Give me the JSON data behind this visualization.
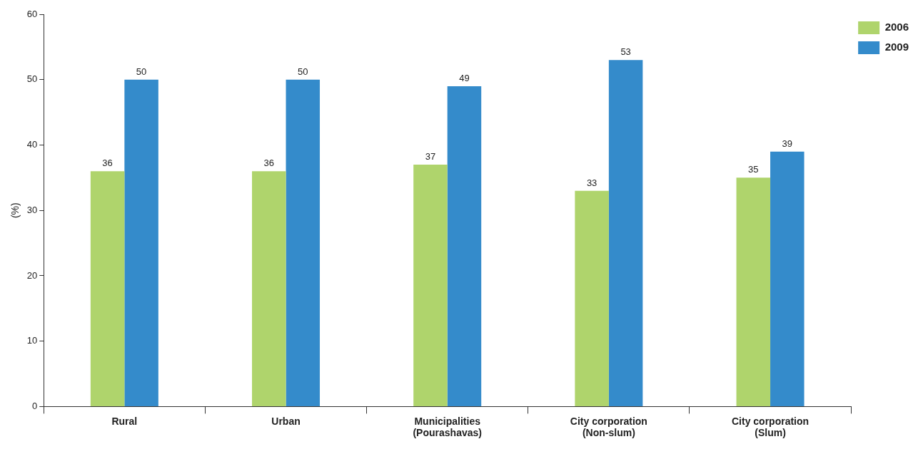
{
  "chart_data": {
    "type": "bar",
    "ylabel": "(%)",
    "categories": [
      "Rural",
      "Urban",
      "Municipalities (Pourashavas)",
      "City corporation (Non-slum)",
      "City corporation (Slum)"
    ],
    "series": [
      {
        "name": "2006",
        "color": "#afd46c",
        "values": [
          36,
          36,
          37,
          33,
          35
        ]
      },
      {
        "name": "2009",
        "color": "#348bcb",
        "values": [
          50,
          50,
          49,
          53,
          39
        ]
      }
    ],
    "ylim": [
      0,
      60
    ],
    "yticks": [
      0,
      10,
      20,
      30,
      40,
      50,
      60
    ],
    "data_labels": true,
    "legend": "top right",
    "grid": false
  }
}
